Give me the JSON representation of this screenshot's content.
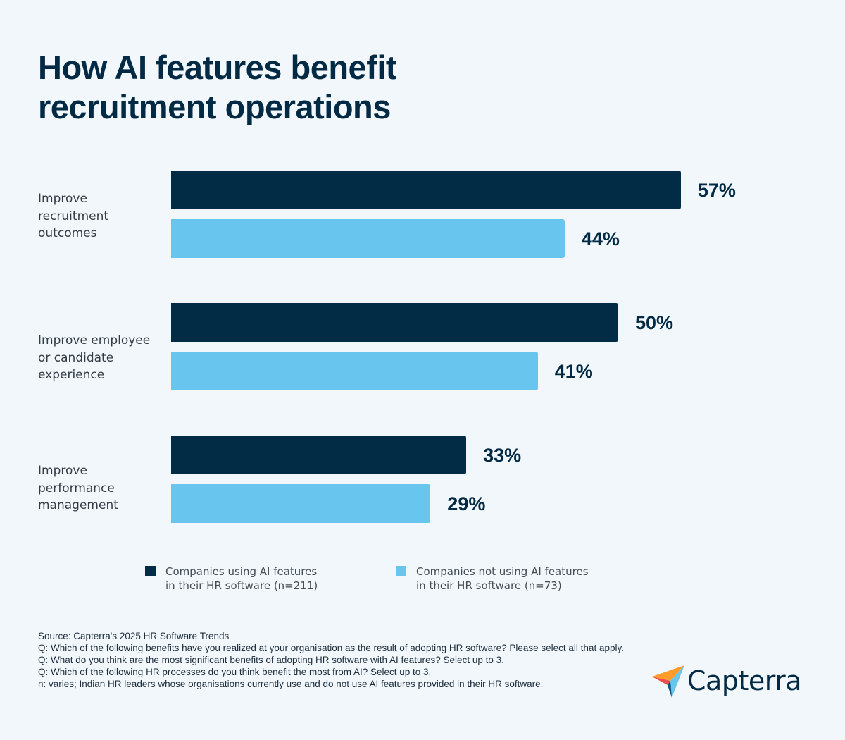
{
  "chart_data": {
    "type": "bar",
    "orientation": "horizontal",
    "title": "How AI features benefit recruitment operations",
    "categories": [
      "Improve recruitment outcomes",
      "Improve employee or candidate experience",
      "Improve performance management"
    ],
    "series": [
      {
        "name": "Companies using AI features in their HR software (n=211)",
        "values": [
          57,
          50,
          33
        ],
        "labels": [
          "57%",
          "50%",
          "33%"
        ],
        "color": "#022c45"
      },
      {
        "name": "Companies not using AI features in their HR software (n=73)",
        "values": [
          44,
          41,
          29
        ],
        "labels": [
          "44%",
          "41%",
          "29%"
        ],
        "color": "#68c5ed"
      }
    ],
    "unit": "%",
    "grid": false,
    "legend_position": "bottom"
  },
  "title_lines": [
    "How AI features benefit",
    "recruitment operations"
  ],
  "category_lines": [
    [
      "Improve",
      "recruitment",
      "outcomes"
    ],
    [
      "Improve employee",
      "or candidate",
      "experience"
    ],
    [
      "Improve",
      "performance",
      "management"
    ]
  ],
  "legend": [
    {
      "line1": "Companies using AI features",
      "line2": "in their HR software (n=211)"
    },
    {
      "line1": "Companies not using AI features",
      "line2": "in their HR software (n=73)"
    }
  ],
  "notes": [
    "Source: Capterra's 2025 HR Software Trends",
    "Q: Which of the following benefits have you realized at your organisation as the result of adopting HR software? Please select all that apply.",
    "Q: What do you think are the most significant benefits of adopting HR software with AI features? Select up to 3.",
    "Q: Which of the following HR processes do you think benefit the most from AI? Select up to 3.",
    "n: varies; Indian HR leaders whose organisations currently use and do not use AI features provided in their HR software."
  ],
  "logo": {
    "text": "Capterra"
  }
}
